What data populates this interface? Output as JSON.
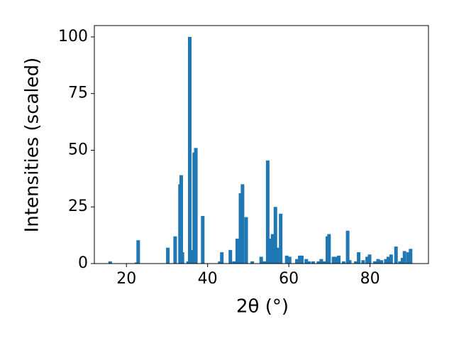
{
  "chart_data": {
    "type": "bar",
    "xlabel": "2θ (°)",
    "ylabel": "Intensities (scaled)",
    "color": "#1f77b4",
    "x": [
      16.0,
      22.5,
      22.9,
      30.2,
      32.0,
      33.2,
      33.5,
      33.8,
      35.2,
      35.6,
      35.9,
      36.7,
      37.1,
      38.8,
      43.0,
      43.5,
      45.6,
      46.5,
      47.3,
      48.1,
      48.6,
      49.5,
      51.0,
      53.2,
      54.0,
      54.8,
      55.3,
      56.0,
      56.7,
      57.5,
      58.0,
      59.5,
      60.2,
      62.0,
      62.7,
      63.2,
      64.3,
      65.0,
      66.0,
      67.3,
      68.0,
      68.8,
      69.5,
      69.9,
      71.0,
      71.6,
      72.3,
      73.5,
      74.5,
      75.0,
      76.5,
      77.2,
      78.3,
      79.3,
      79.9,
      81.2,
      82.0,
      82.8,
      83.9,
      84.5,
      85.2,
      86.4,
      87.4,
      88.0,
      88.5,
      89.4,
      90.0
    ],
    "values": [
      1,
      0.5,
      10.3,
      7,
      12,
      35,
      39,
      5,
      1,
      100,
      6,
      49,
      51,
      21,
      1,
      5,
      6,
      1,
      11,
      31,
      35,
      20.5,
      1,
      3,
      1,
      45.5,
      11,
      13,
      25,
      7,
      22,
      3.5,
      3,
      2,
      3.5,
      3.5,
      2,
      1,
      1,
      1,
      2,
      1,
      12,
      13,
      3,
      3,
      3.5,
      1,
      14.5,
      1.5,
      1,
      5,
      1.5,
      3,
      4,
      1,
      2,
      1.5,
      2,
      3,
      4,
      7.5,
      1,
      2.5,
      5.5,
      5,
      6.5
    ],
    "xlim": [
      12.1,
      94.4
    ],
    "ylim": [
      0,
      105
    ],
    "xticks": [
      20,
      40,
      60,
      80
    ],
    "yticks": [
      0,
      25,
      50,
      75,
      100
    ]
  }
}
